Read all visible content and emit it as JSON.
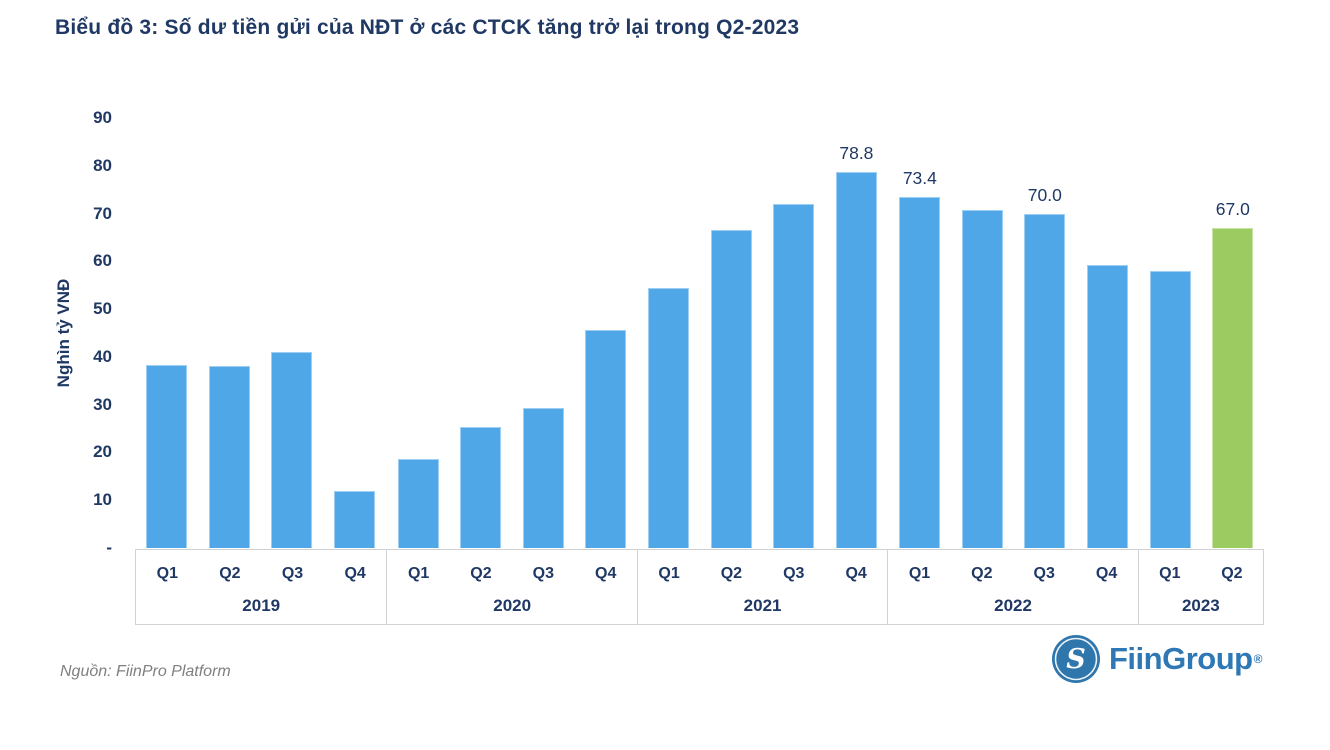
{
  "header": {
    "title": "Biểu đồ 3: Số dư tiền gửi của NĐT ở các CTCK tăng trở lại trong Q2-2023"
  },
  "source": {
    "text": "Nguồn: FiinPro Platform"
  },
  "logo": {
    "text": "FiinGroup",
    "registered": "®"
  },
  "colors": {
    "navy": "#1F3864",
    "bar_blue": "#4FA7E8",
    "bar_green": "#9CCB62",
    "frame_gray": "#D2D2D2",
    "source_gray": "#7F7F7F",
    "logo_blue": "#2E79B5",
    "logo_icon_blue": "#2E76AC"
  },
  "chart_data": {
    "type": "bar",
    "title": "Biểu đồ 3: Số dư tiền gửi của NĐT ở các CTCK tăng trở lại trong Q2-2023",
    "xlabel": "",
    "ylabel": "Nghìn tỷ VNĐ",
    "ylim": [
      0,
      90
    ],
    "grid": false,
    "legend": false,
    "yticks": [
      {
        "value": 90,
        "label": "90"
      },
      {
        "value": 80,
        "label": "80"
      },
      {
        "value": 70,
        "label": "70"
      },
      {
        "value": 60,
        "label": "60"
      },
      {
        "value": 50,
        "label": "50"
      },
      {
        "value": 40,
        "label": "40"
      },
      {
        "value": 30,
        "label": "30"
      },
      {
        "value": 20,
        "label": "20"
      },
      {
        "value": 10,
        "label": "10"
      },
      {
        "value": 0,
        "label": "-"
      }
    ],
    "highlighted_bar": "2023-Q2",
    "groups": [
      {
        "year": "2019",
        "quarters": [
          "Q1",
          "Q2",
          "Q3",
          "Q4"
        ],
        "values": [
          38.4,
          38.0,
          41.0,
          12.0
        ],
        "data_labels": [
          "",
          "",
          "",
          ""
        ],
        "highlight": [
          false,
          false,
          false,
          false
        ]
      },
      {
        "year": "2020",
        "quarters": [
          "Q1",
          "Q2",
          "Q3",
          "Q4"
        ],
        "values": [
          18.6,
          25.4,
          29.4,
          45.6
        ],
        "data_labels": [
          "",
          "",
          "",
          ""
        ],
        "highlight": [
          false,
          false,
          false,
          false
        ]
      },
      {
        "year": "2021",
        "quarters": [
          "Q1",
          "Q2",
          "Q3",
          "Q4"
        ],
        "values": [
          54.5,
          66.5,
          72.0,
          78.8
        ],
        "data_labels": [
          "",
          "",
          "",
          "78.8"
        ],
        "highlight": [
          false,
          false,
          false,
          false
        ]
      },
      {
        "year": "2022",
        "quarters": [
          "Q1",
          "Q2",
          "Q3",
          "Q4"
        ],
        "values": [
          73.4,
          70.8,
          70.0,
          59.2
        ],
        "data_labels": [
          "73.4",
          "",
          "70.0",
          ""
        ],
        "highlight": [
          false,
          false,
          false,
          false
        ]
      },
      {
        "year": "2023",
        "quarters": [
          "Q1",
          "Q2"
        ],
        "values": [
          58.0,
          67.0
        ],
        "data_labels": [
          "",
          "67.0"
        ],
        "highlight": [
          false,
          true
        ]
      }
    ]
  }
}
